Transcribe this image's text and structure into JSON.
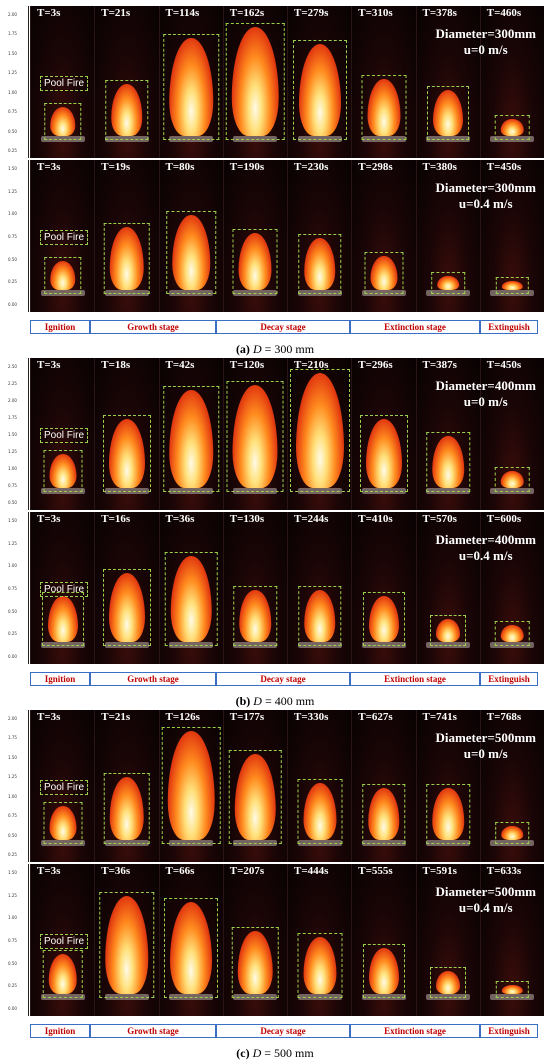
{
  "stages": [
    "Ignition",
    "Growth stage",
    "Decay stage",
    "Extinction stage",
    "Extinguish"
  ],
  "pool_fire_label": "Pool Fire",
  "panels": [
    {
      "caption_prefix": "(a)",
      "caption_var": "D",
      "caption_value": "= 300 mm",
      "rows": [
        {
          "times": [
            "T=3s",
            "T=21s",
            "T=114s",
            "T=162s",
            "T=279s",
            "T=310s",
            "T=378s",
            "T=460s"
          ],
          "condition": [
            "Diameter=300mm",
            "u=0 m/s"
          ],
          "flame_levels": [
            0.25,
            0.45,
            0.85,
            0.95,
            0.8,
            0.5,
            0.4,
            0.15
          ],
          "axis_ticks": [
            "2.00",
            "1.75",
            "1.50",
            "1.25",
            "1.00",
            "0.75",
            "0.50",
            "0.25"
          ]
        },
        {
          "times": [
            "T=3s",
            "T=19s",
            "T=80s",
            "T=190s",
            "T=230s",
            "T=298s",
            "T=380s",
            "T=450s"
          ],
          "condition": [
            "Diameter=300mm",
            "u=0.4 m/s"
          ],
          "flame_levels": [
            0.25,
            0.55,
            0.65,
            0.5,
            0.45,
            0.3,
            0.12,
            0.08
          ],
          "axis_ticks": [
            "1.50",
            "1.25",
            "1.00",
            "0.75",
            "0.50",
            "0.25",
            "0.00"
          ]
        }
      ]
    },
    {
      "caption_prefix": "(b)",
      "caption_var": "D",
      "caption_value": "= 400 mm",
      "rows": [
        {
          "times": [
            "T=3s",
            "T=18s",
            "T=42s",
            "T=120s",
            "T=210s",
            "T=296s",
            "T=387s",
            "T=450s"
          ],
          "condition": [
            "Diameter=400mm",
            "u=0 m/s"
          ],
          "flame_levels": [
            0.3,
            0.6,
            0.85,
            0.9,
            1.0,
            0.6,
            0.45,
            0.15
          ],
          "axis_ticks": [
            "2.50",
            "2.25",
            "2.00",
            "1.75",
            "1.50",
            "1.25",
            "1.00",
            "0.75",
            "0.50"
          ]
        },
        {
          "times": [
            "T=3s",
            "T=16s",
            "T=36s",
            "T=130s",
            "T=244s",
            "T=410s",
            "T=570s",
            "T=600s"
          ],
          "condition": [
            "Diameter=400mm",
            "u=0.4 m/s"
          ],
          "flame_levels": [
            0.4,
            0.6,
            0.75,
            0.45,
            0.45,
            0.4,
            0.2,
            0.15
          ],
          "axis_ticks": [
            "1.50",
            "1.25",
            "1.00",
            "0.75",
            "0.50",
            "0.25",
            "0.00"
          ]
        }
      ]
    },
    {
      "caption_prefix": "(c)",
      "caption_var": "D",
      "caption_value": "= 500 mm",
      "rows": [
        {
          "times": [
            "T=3s",
            "T=21s",
            "T=126s",
            "T=177s",
            "T=330s",
            "T=627s",
            "T=741s",
            "T=768s"
          ],
          "condition": [
            "Diameter=500mm",
            "u=0 m/s"
          ],
          "flame_levels": [
            0.3,
            0.55,
            0.95,
            0.75,
            0.5,
            0.45,
            0.45,
            0.12
          ],
          "axis_ticks": [
            "2.00",
            "1.75",
            "1.50",
            "1.25",
            "1.00",
            "0.75",
            "0.50",
            "0.25"
          ]
        },
        {
          "times": [
            "T=3s",
            "T=36s",
            "T=66s",
            "T=207s",
            "T=444s",
            "T=555s",
            "T=591s",
            "T=633s"
          ],
          "condition": [
            "Diameter=500mm",
            "u=0.4 m/s"
          ],
          "flame_levels": [
            0.35,
            0.85,
            0.8,
            0.55,
            0.5,
            0.4,
            0.2,
            0.08
          ],
          "axis_ticks": [
            "1.50",
            "1.25",
            "1.00",
            "0.75",
            "0.50",
            "0.25",
            "0.00"
          ]
        }
      ]
    }
  ]
}
